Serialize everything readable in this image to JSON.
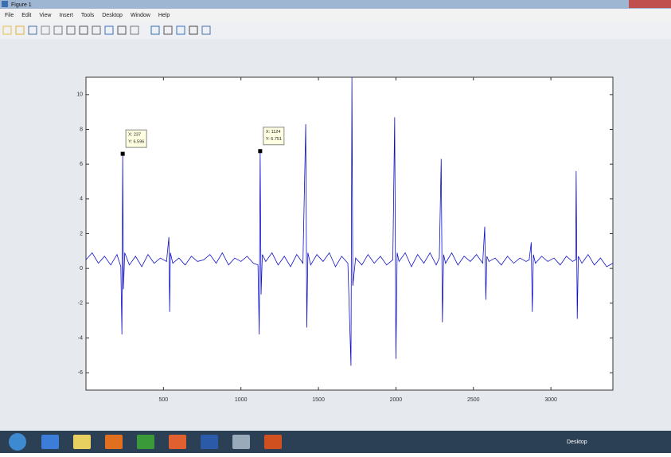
{
  "window": {
    "title": "Figure 1",
    "menu": [
      "File",
      "Edit",
      "View",
      "Insert",
      "Tools",
      "Desktop",
      "Window",
      "Help"
    ]
  },
  "taskbar": {
    "label": "Desktop"
  },
  "chart_data": {
    "type": "line",
    "x": [
      0,
      40,
      80,
      120,
      160,
      200,
      225,
      232,
      237,
      242,
      250,
      280,
      320,
      360,
      400,
      440,
      480,
      520,
      535,
      540,
      545,
      560,
      600,
      640,
      680,
      720,
      760,
      800,
      840,
      880,
      920,
      960,
      1000,
      1040,
      1080,
      1110,
      1118,
      1124,
      1130,
      1138,
      1160,
      1200,
      1240,
      1280,
      1320,
      1360,
      1400,
      1418,
      1425,
      1432,
      1450,
      1490,
      1530,
      1570,
      1610,
      1650,
      1690,
      1710,
      1716,
      1722,
      1740,
      1780,
      1820,
      1860,
      1900,
      1940,
      1980,
      1992,
      2000,
      2008,
      2020,
      2060,
      2100,
      2140,
      2180,
      2220,
      2260,
      2280,
      2292,
      2300,
      2308,
      2320,
      2360,
      2400,
      2440,
      2480,
      2520,
      2560,
      2573,
      2580,
      2587,
      2600,
      2640,
      2680,
      2720,
      2760,
      2800,
      2840,
      2860,
      2873,
      2880,
      2887,
      2900,
      2940,
      2980,
      3020,
      3060,
      3100,
      3140,
      3160,
      3163,
      3170,
      3177,
      3200,
      3240,
      3280,
      3320,
      3360,
      3400
    ],
    "series": [
      {
        "color": "#1010c8",
        "values": [
          0.5,
          0.9,
          0.3,
          0.7,
          0.2,
          0.8,
          0.1,
          -3.8,
          6.596,
          -1.2,
          0.9,
          0.2,
          0.7,
          0.1,
          0.8,
          0.3,
          0.6,
          0.4,
          1.8,
          -2.5,
          0.9,
          0.3,
          0.6,
          0.2,
          0.7,
          0.4,
          0.5,
          0.8,
          0.3,
          0.9,
          0.2,
          0.6,
          0.4,
          0.7,
          0.3,
          0.2,
          -3.8,
          6.751,
          -1.5,
          0.8,
          0.4,
          0.9,
          0.2,
          0.7,
          0.1,
          0.8,
          0.3,
          8.3,
          -3.4,
          0.9,
          0.2,
          0.8,
          0.4,
          0.9,
          0.1,
          0.7,
          0.3,
          -5.6,
          11,
          -1.0,
          0.6,
          0.2,
          0.8,
          0.3,
          0.7,
          0.2,
          0.5,
          8.7,
          -5.2,
          0.9,
          0.4,
          0.9,
          0.1,
          0.8,
          0.3,
          0.9,
          0.2,
          0.6,
          6.3,
          -3.1,
          0.8,
          0.3,
          0.9,
          0.2,
          0.7,
          0.4,
          0.8,
          0.3,
          2.4,
          -1.8,
          0.7,
          0.4,
          0.6,
          0.2,
          0.7,
          0.3,
          0.6,
          0.4,
          0.5,
          1.5,
          -2.5,
          0.8,
          0.3,
          0.7,
          0.4,
          0.6,
          0.2,
          0.7,
          0.4,
          0.5,
          5.6,
          -2.9,
          0.7,
          0.3,
          0.8,
          0.2,
          0.6,
          0.1,
          0.3
        ]
      }
    ],
    "xlim": [
      0,
      3400
    ],
    "ylim": [
      -7,
      11
    ],
    "xticks": [
      500,
      1000,
      1500,
      2000,
      2500,
      3000
    ],
    "yticks": [
      -6,
      -4,
      -2,
      0,
      2,
      4,
      6,
      8,
      10
    ],
    "annotations": [
      {
        "x": 237,
        "y": 6.596,
        "text": [
          "X: 237",
          "Y: 6.596"
        ]
      },
      {
        "x": 1124,
        "y": 6.751,
        "text": [
          "X: 1124",
          "Y: 6.751"
        ]
      }
    ]
  }
}
